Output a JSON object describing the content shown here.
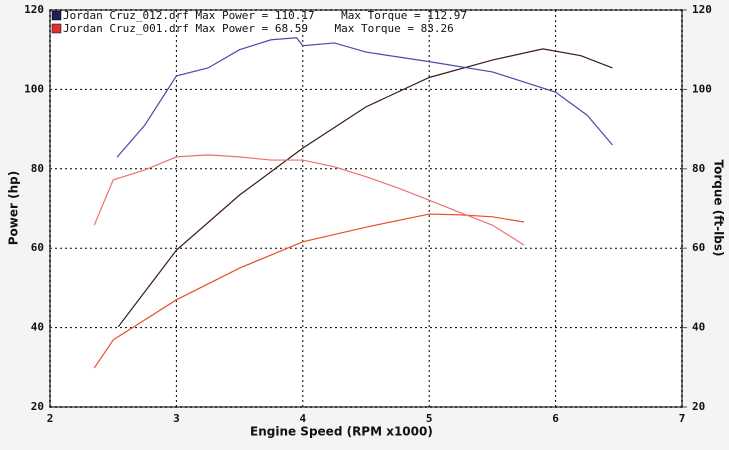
{
  "chart_data": {
    "type": "line",
    "legend": [
      {
        "text": "Jordan Cruz_012.drf Max Power = 110.17    Max Torque = 112.97",
        "color": "#1e1e5a"
      },
      {
        "text": "Jordan Cruz_001.drf Max Power = 68.59    Max Torque = 83.26",
        "color": "#e03030"
      }
    ],
    "xlabel": "Engine Speed (RPM x1000)",
    "ylabel": "Power (hp)",
    "y2label": "Torque (ft-lbs)",
    "xlim": [
      2,
      7
    ],
    "xticks": [
      2,
      3,
      4,
      5,
      6,
      7
    ],
    "ylim": [
      20,
      120
    ],
    "yticks": [
      20,
      40,
      60,
      80,
      100,
      120
    ],
    "y2lim": [
      20,
      120
    ],
    "y2ticks": [
      20,
      40,
      60,
      80,
      100,
      120
    ],
    "grid": true,
    "series": [
      {
        "color": "#3a1a1a",
        "axis": "y",
        "x": [
          2.54,
          3.0,
          3.5,
          4.0,
          4.5,
          5.0,
          5.5,
          5.9,
          6.2,
          6.45
        ],
        "values": [
          40.2,
          59.5,
          73.4,
          85.2,
          95.6,
          103,
          107.4,
          110.2,
          108.5,
          105.4
        ]
      },
      {
        "color": "#4a4aa8",
        "axis": "y2",
        "x": [
          2.53,
          2.75,
          3.0,
          3.25,
          3.5,
          3.75,
          3.95,
          4.0,
          4.25,
          4.5,
          5.0,
          5.5,
          6.0,
          6.25,
          6.45
        ],
        "values": [
          82.9,
          91,
          103.4,
          105.4,
          110,
          112.5,
          113,
          111,
          111.7,
          109.4,
          107,
          104.4,
          99.3,
          93.5,
          86
        ]
      },
      {
        "color": "#e8502a",
        "axis": "y",
        "x": [
          2.35,
          2.5,
          3.0,
          3.5,
          4.0,
          4.5,
          5.0,
          5.25,
          5.5,
          5.75
        ],
        "values": [
          29.8,
          36.9,
          47,
          55,
          61.6,
          65.3,
          68.6,
          68.4,
          67.9,
          66.6
        ]
      },
      {
        "color": "#f07070",
        "axis": "y2",
        "x": [
          2.35,
          2.5,
          2.75,
          3.0,
          3.25,
          3.5,
          3.75,
          4.0,
          4.25,
          4.5,
          4.75,
          5.0,
          5.25,
          5.5,
          5.75
        ],
        "values": [
          65.8,
          77.2,
          79.7,
          83,
          83.5,
          83,
          82.2,
          82.2,
          80.5,
          78,
          75.2,
          72.1,
          68.9,
          65.8,
          60.8
        ]
      }
    ]
  }
}
